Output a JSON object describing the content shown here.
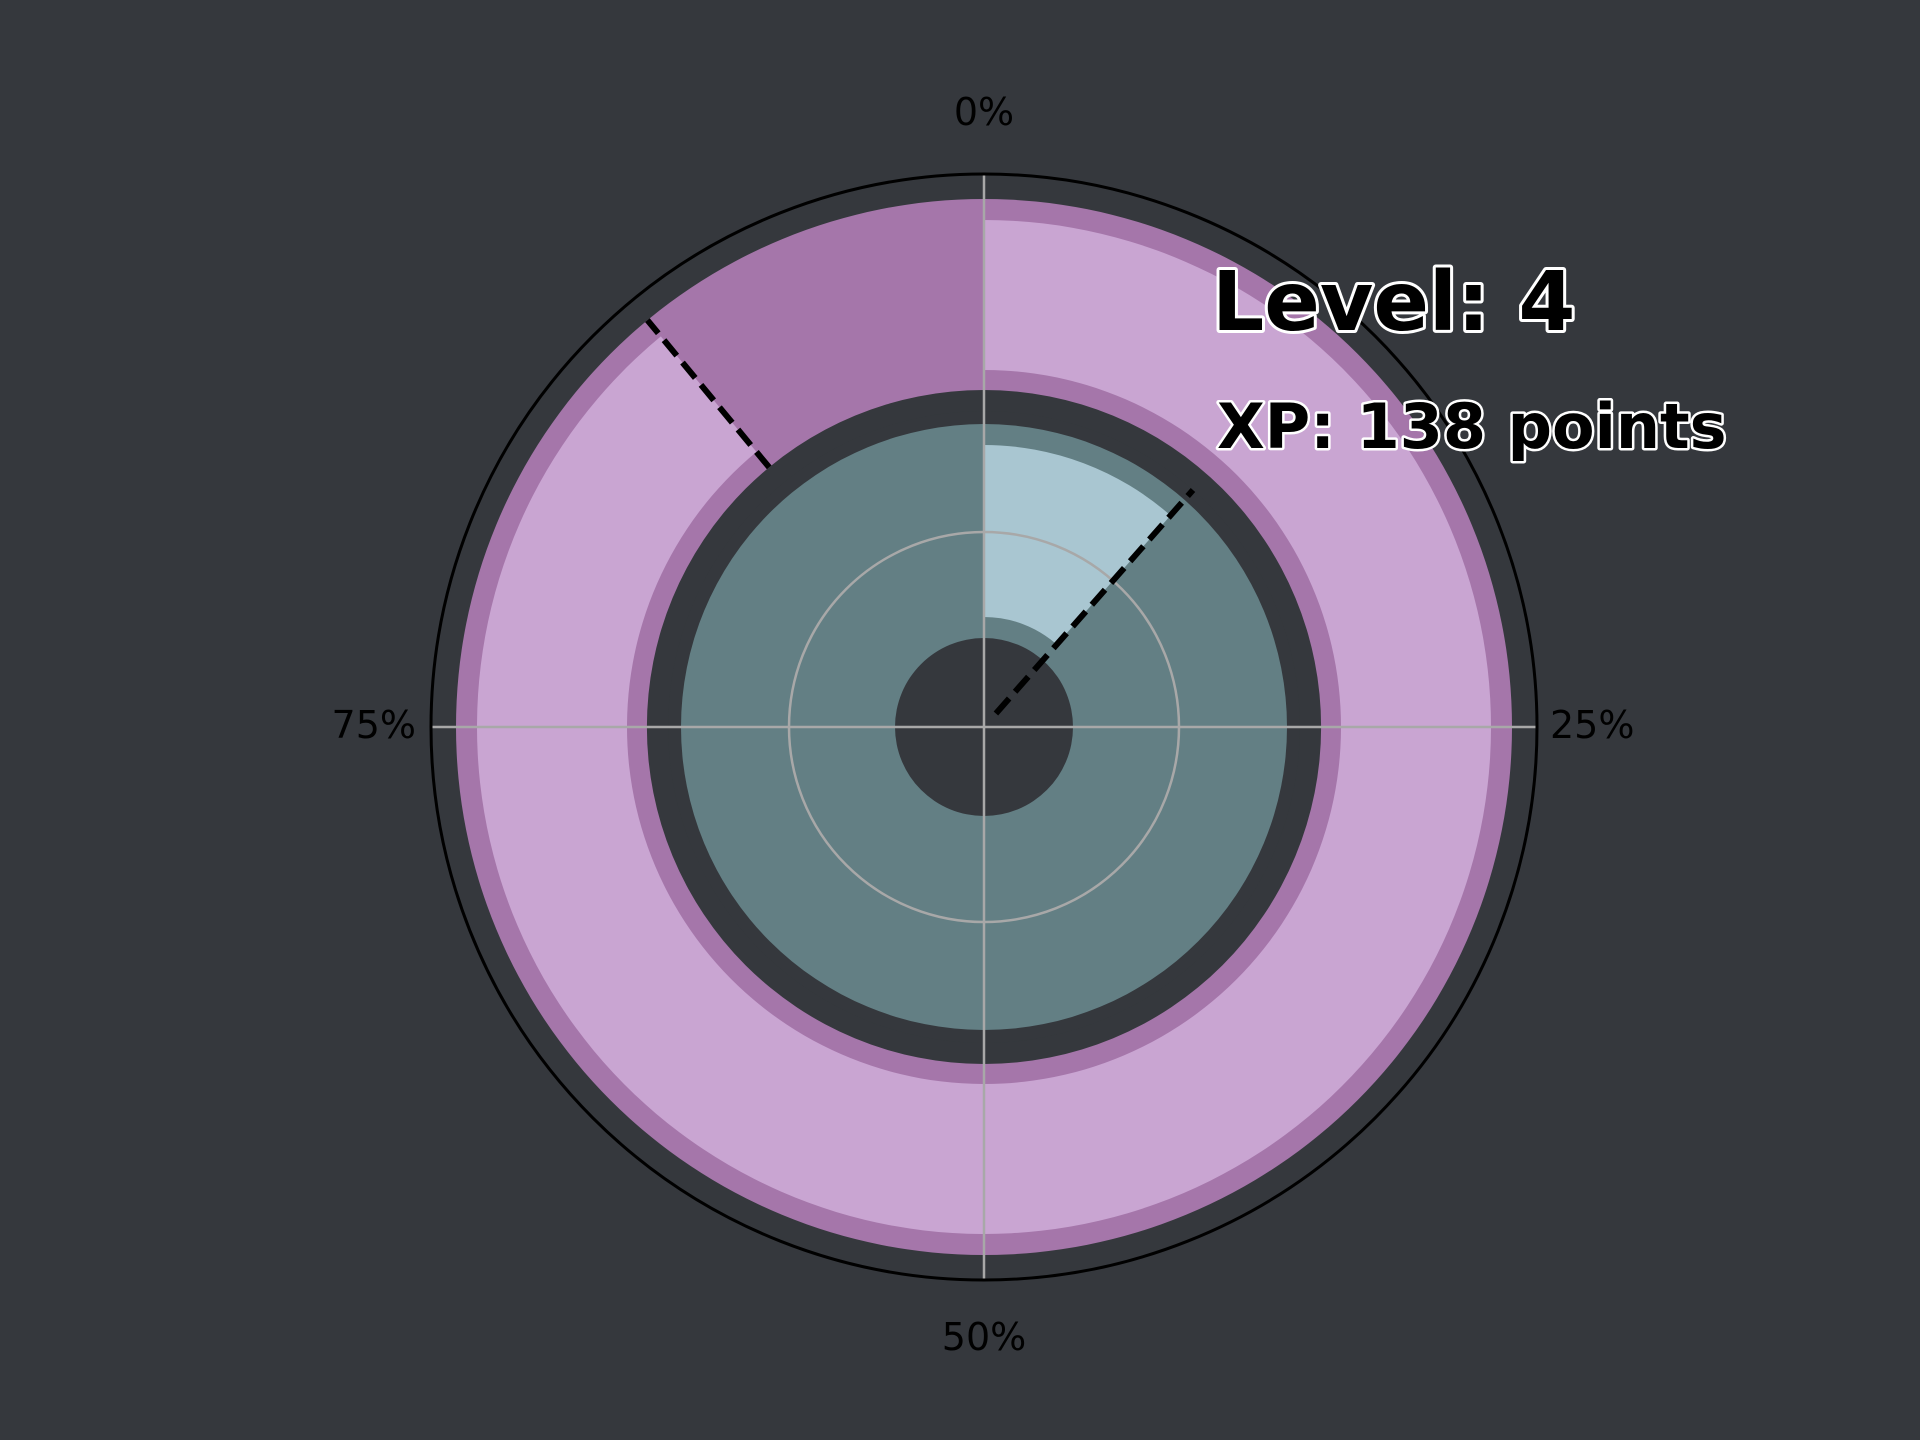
{
  "chart_data": {
    "type": "pie",
    "subtype": "polar-progress-rings",
    "angular_ticks": [
      "0%",
      "25%",
      "50%",
      "75%"
    ],
    "rings": [
      {
        "name": "outer",
        "fraction": 0.89,
        "track_color": "#a576aa",
        "fill_color": "#c9a5d2"
      },
      {
        "name": "inner",
        "fraction": 0.115,
        "track_color": "#637f84",
        "fill_color": "#a9c6d1"
      }
    ],
    "markers": [
      0.89,
      0.115
    ],
    "annotations": {
      "level": "Level: 4",
      "xp": "XP: 138 points"
    },
    "grid": true,
    "colors": {
      "background": "#35383d",
      "outer_track": "#a576aa",
      "outer_fill": "#c9a5d2",
      "inner_track": "#637f84",
      "inner_fill": "#a9c6d1",
      "grid": "#a8a8a8",
      "frame": "#000000"
    }
  }
}
